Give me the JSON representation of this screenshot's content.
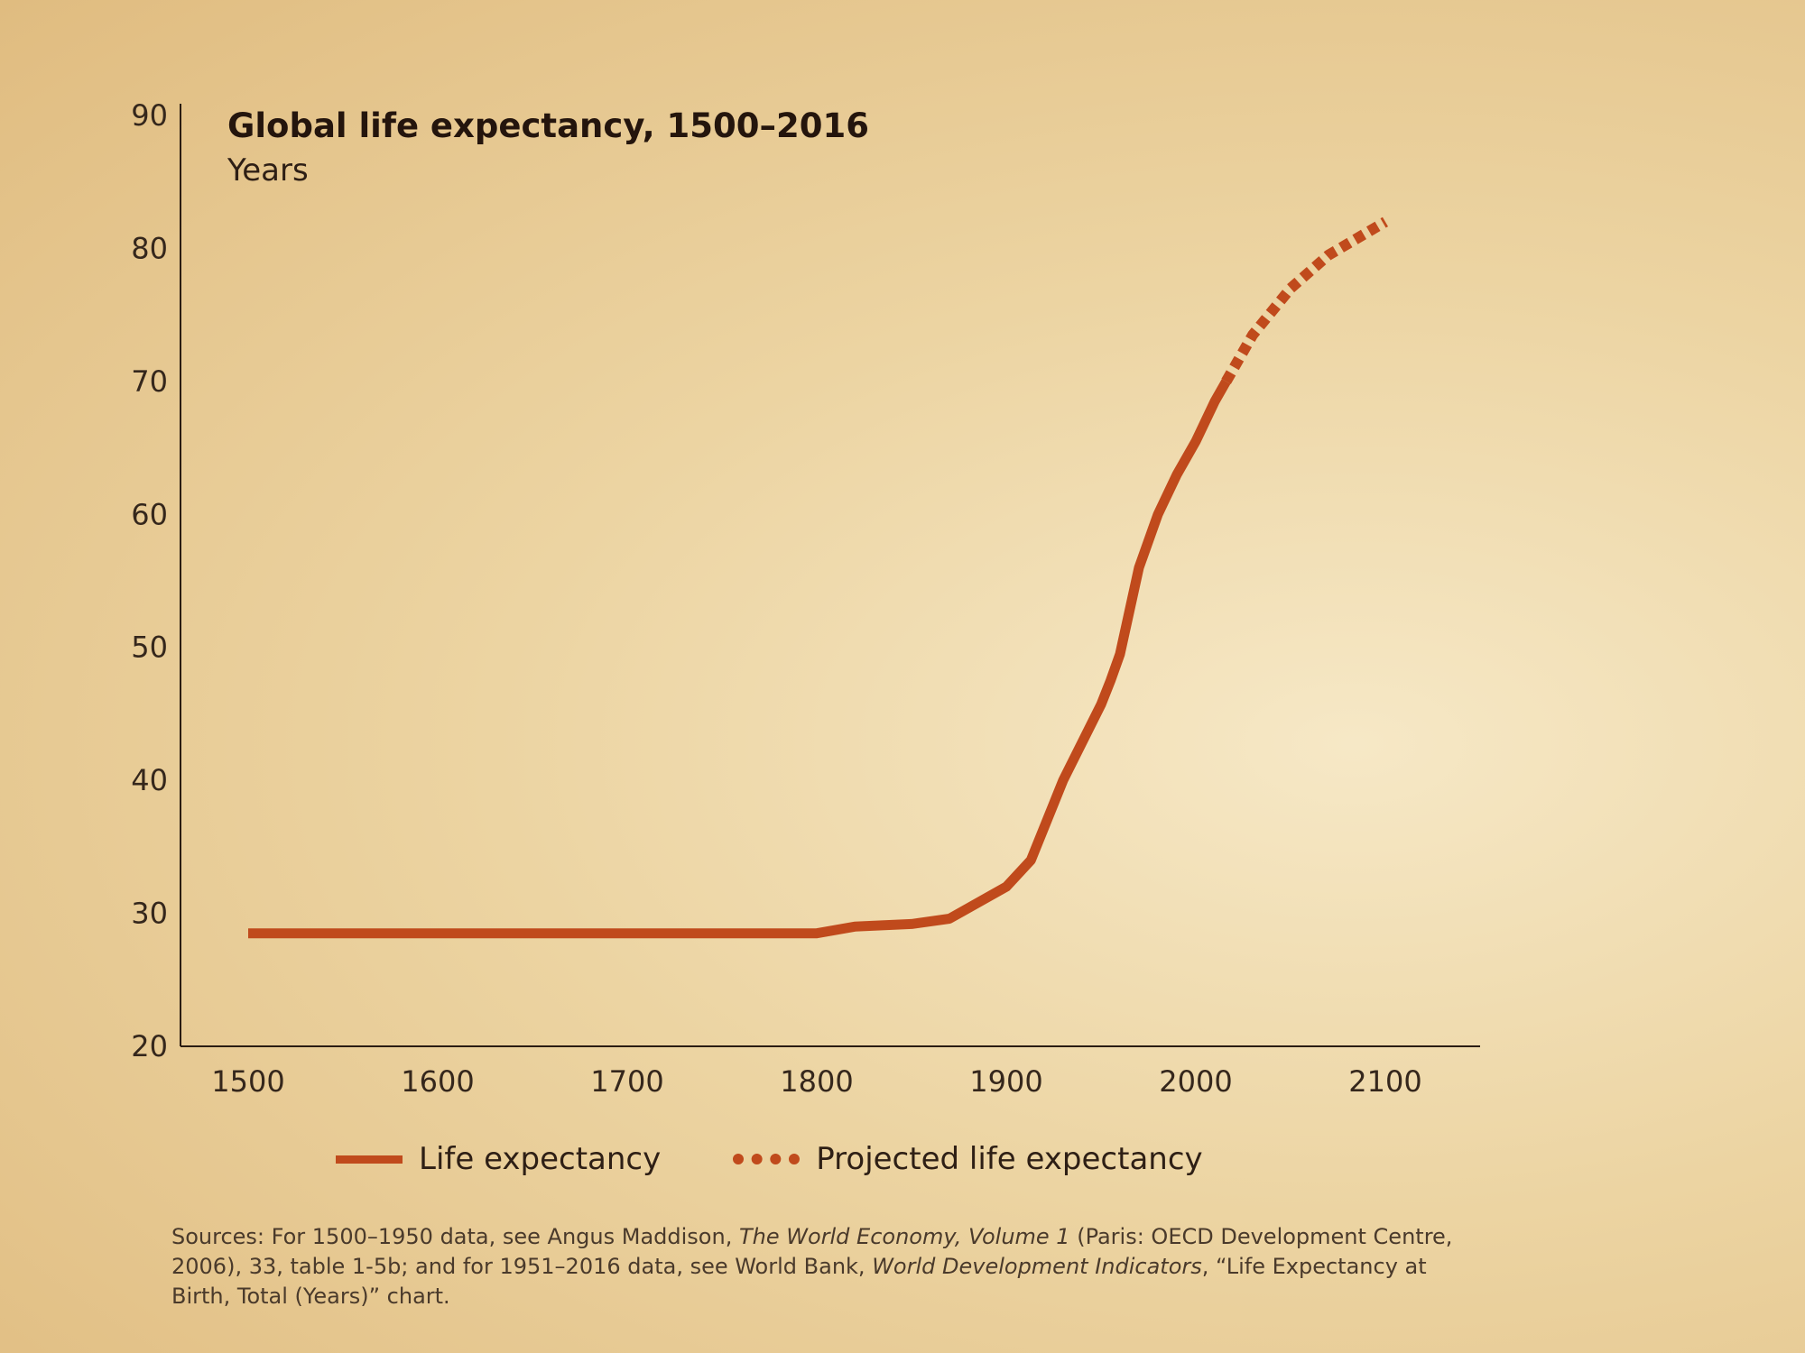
{
  "chart_data": {
    "type": "line",
    "title": "Global life expectancy, 1500–2016",
    "subtitle": "Years",
    "xlim": [
      1500,
      2100
    ],
    "ylim": [
      20,
      90
    ],
    "x_ticks": [
      1500,
      1600,
      1700,
      1800,
      1900,
      2000,
      2100
    ],
    "y_ticks": [
      20,
      30,
      40,
      50,
      60,
      70,
      80,
      90
    ],
    "grid": false,
    "legend_placement": "bottom",
    "series": [
      {
        "name": "Life expectancy",
        "style": "solid",
        "color": "#c04a1c",
        "x": [
          1500,
          1600,
          1700,
          1800,
          1820,
          1850,
          1870,
          1900,
          1913,
          1930,
          1950,
          1955,
          1960,
          1970,
          1980,
          1990,
          2000,
          2010,
          2016
        ],
        "y": [
          28.5,
          28.5,
          28.5,
          28.5,
          29,
          29.2,
          29.6,
          32,
          34,
          40,
          45.7,
          47.5,
          49.5,
          56,
          60,
          63,
          65.5,
          68.5,
          70
        ]
      },
      {
        "name": "Projected life expectancy",
        "style": "dotted",
        "color": "#c04a1c",
        "x": [
          2016,
          2030,
          2050,
          2070,
          2100
        ],
        "y": [
          70,
          73.5,
          77,
          79.5,
          82
        ]
      }
    ]
  },
  "legend": {
    "items": [
      {
        "label": "Life expectancy"
      },
      {
        "label": "Projected life expectancy"
      }
    ]
  },
  "sources": {
    "part1": "Sources: For 1500–1950 data, see Angus Maddison, ",
    "italic1": "The World Economy, Volume 1",
    "part2": " (Paris: OECD Development Centre, 2006), 33, table 1-5b; and for 1951–2016 data, see World Bank, ",
    "italic2": "World Development Indicators",
    "part3": ", “Life Expectancy at Birth, Total (Years)” chart."
  }
}
